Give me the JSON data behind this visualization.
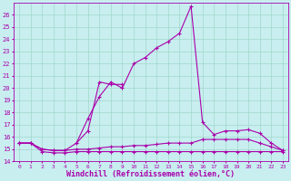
{
  "xlabel": "Windchill (Refroidissement éolien,°C)",
  "bg_color": "#c8eef0",
  "grid_color": "#a0d8c8",
  "line_color": "#aa00aa",
  "xlim": [
    -0.5,
    23.5
  ],
  "ylim": [
    14,
    27
  ],
  "yticks": [
    14,
    15,
    16,
    17,
    18,
    19,
    20,
    21,
    22,
    23,
    24,
    25,
    26
  ],
  "xticks": [
    0,
    1,
    2,
    3,
    4,
    5,
    6,
    7,
    8,
    9,
    10,
    11,
    12,
    13,
    14,
    15,
    16,
    17,
    18,
    19,
    20,
    21,
    22,
    23
  ],
  "series": [
    {
      "x": [
        0,
        1,
        2,
        3,
        4,
        5,
        6,
        7,
        8,
        9,
        10,
        11,
        12,
        13,
        14,
        15,
        16,
        17,
        18,
        19,
        20,
        21,
        22,
        23
      ],
      "y": [
        15.5,
        15.5,
        14.8,
        14.7,
        14.7,
        14.8,
        14.8,
        14.8,
        14.8,
        14.8,
        14.8,
        14.8,
        14.8,
        14.8,
        14.8,
        14.8,
        14.8,
        14.8,
        14.8,
        14.8,
        14.8,
        14.8,
        14.8,
        14.8
      ]
    },
    {
      "x": [
        0,
        1,
        2,
        3,
        4,
        5,
        6,
        7,
        8,
        9,
        10,
        11,
        12,
        13,
        14,
        15,
        16,
        17,
        18,
        19,
        20,
        21,
        22,
        23
      ],
      "y": [
        15.5,
        15.5,
        15.0,
        14.9,
        14.9,
        15.0,
        15.0,
        15.1,
        15.2,
        15.2,
        15.3,
        15.3,
        15.4,
        15.5,
        15.5,
        15.5,
        15.8,
        15.8,
        15.8,
        15.8,
        15.8,
        15.5,
        15.2,
        14.9
      ]
    },
    {
      "x": [
        0,
        1,
        2,
        3,
        4,
        5,
        6,
        7,
        8,
        9,
        10,
        11,
        12,
        13,
        14,
        15,
        16,
        17,
        18,
        19,
        20,
        21,
        22,
        23
      ],
      "y": [
        15.5,
        15.5,
        15.0,
        14.9,
        14.9,
        15.5,
        17.5,
        19.3,
        20.5,
        20.0,
        22.0,
        22.5,
        23.3,
        23.8,
        24.5,
        26.7,
        17.2,
        16.2,
        16.5,
        16.5,
        16.6,
        16.3,
        15.5,
        14.9
      ]
    },
    {
      "x": [
        5,
        6,
        7,
        8,
        9
      ],
      "y": [
        15.5,
        16.5,
        20.5,
        20.3,
        20.3
      ]
    }
  ]
}
